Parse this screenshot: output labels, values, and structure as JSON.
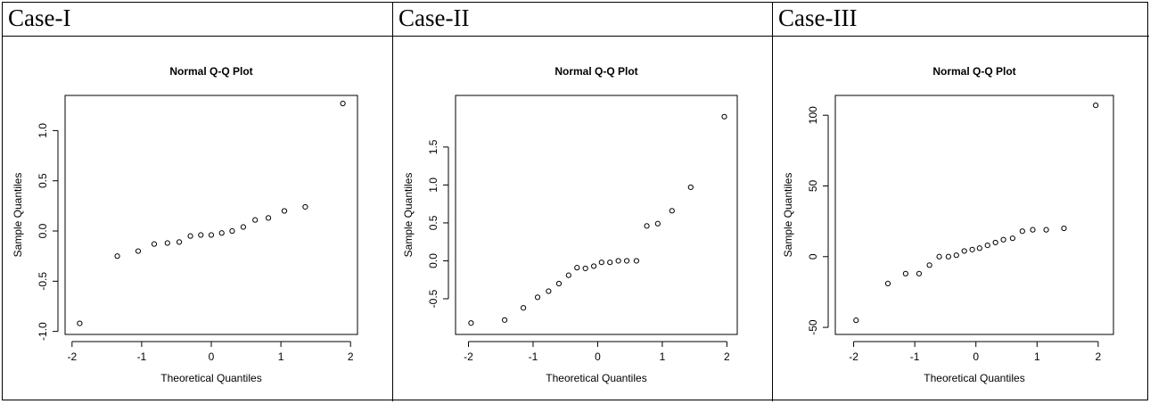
{
  "table": {
    "headers": [
      "Case-I",
      "Case-II",
      "Case-III"
    ]
  },
  "chart_data": [
    {
      "type": "scatter",
      "title": "Normal Q-Q Plot",
      "x_label": "Theoretical Quantiles",
      "y_label": "Sample Quantiles",
      "color": "#000000",
      "x": [
        -1.89,
        -1.35,
        -1.05,
        -0.82,
        -0.63,
        -0.46,
        -0.3,
        -0.15,
        0,
        0.15,
        0.3,
        0.46,
        0.63,
        0.82,
        1.05,
        1.35,
        1.89
      ],
      "values": [
        -0.92,
        -0.25,
        -0.2,
        -0.13,
        -0.12,
        -0.11,
        -0.05,
        -0.04,
        -0.04,
        -0.02,
        0.0,
        0.04,
        0.11,
        0.13,
        0.2,
        0.24,
        1.27
      ],
      "xlim": [
        -2.1,
        2.1
      ],
      "ylim": [
        -1.03,
        1.35
      ],
      "xticks": [
        -2,
        -1,
        0,
        1,
        2
      ],
      "yticks": [
        {
          "value": -1,
          "label": "-1.0"
        },
        {
          "value": -0.5,
          "label": "-0.5"
        },
        {
          "value": 0,
          "label": "0.0"
        },
        {
          "value": 0.5,
          "label": "0.5"
        },
        {
          "value": 1,
          "label": "1.0"
        }
      ]
    },
    {
      "type": "scatter",
      "title": "Normal Q-Q Plot",
      "x_label": "Theoretical Quantiles",
      "y_label": "Sample Quantiles",
      "color": "#000000",
      "x": [
        -1.96,
        -1.44,
        -1.15,
        -0.93,
        -0.76,
        -0.6,
        -0.45,
        -0.32,
        -0.19,
        -0.06,
        0.06,
        0.19,
        0.32,
        0.45,
        0.6,
        0.76,
        0.93,
        1.15,
        1.44,
        1.96
      ],
      "values": [
        -0.82,
        -0.78,
        -0.62,
        -0.48,
        -0.4,
        -0.3,
        -0.19,
        -0.09,
        -0.1,
        -0.07,
        -0.02,
        -0.02,
        0,
        0,
        0,
        0.46,
        0.49,
        0.66,
        0.97,
        1.9
      ],
      "xlim": [
        -2.2,
        2.16
      ],
      "ylim": [
        -0.97,
        2.18
      ],
      "xticks": [
        -2,
        -1,
        0,
        1,
        2
      ],
      "yticks": [
        {
          "value": -0.5,
          "label": "-0.5"
        },
        {
          "value": 0,
          "label": "0.0"
        },
        {
          "value": 0.5,
          "label": "0.5"
        },
        {
          "value": 1,
          "label": "1.0"
        },
        {
          "value": 1.5,
          "label": "1.5"
        }
      ]
    },
    {
      "type": "scatter",
      "title": "Normal Q-Q Plot",
      "x_label": "Theoretical Quantiles",
      "y_label": "Sample Quantiles",
      "color": "#000000",
      "x": [
        -1.96,
        -1.44,
        -1.15,
        -0.93,
        -0.76,
        -0.6,
        -0.45,
        -0.32,
        -0.19,
        -0.06,
        0.06,
        0.19,
        0.32,
        0.45,
        0.6,
        0.76,
        0.93,
        1.15,
        1.44,
        1.96
      ],
      "values": [
        -45,
        -19,
        -12,
        -12,
        -6,
        0,
        0,
        1,
        4,
        5,
        6,
        8,
        10,
        12,
        13,
        18,
        19,
        19,
        20,
        107
      ],
      "xlim": [
        -2.3,
        2.25
      ],
      "ylim": [
        -55,
        114
      ],
      "xticks": [
        -2,
        -1,
        0,
        1,
        2
      ],
      "yticks": [
        -50,
        0,
        50,
        100
      ]
    }
  ]
}
